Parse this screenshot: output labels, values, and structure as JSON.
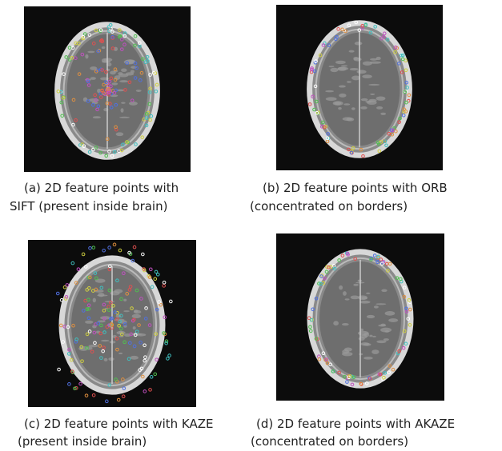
{
  "panels": [
    {
      "caption_lines": [
        "(a) 2D feature points with",
        "SIFT (present inside brain)"
      ]
    },
    {
      "caption_lines": [
        "(b) 2D feature points with ORB",
        "(concentrated on borders)"
      ]
    },
    {
      "caption_lines": [
        "(c) 2D feature points with KAZE",
        "(present inside brain)"
      ]
    },
    {
      "caption_lines": [
        "(d) 2D feature points with AKAZE",
        "(concentrated on borders)"
      ]
    }
  ]
}
